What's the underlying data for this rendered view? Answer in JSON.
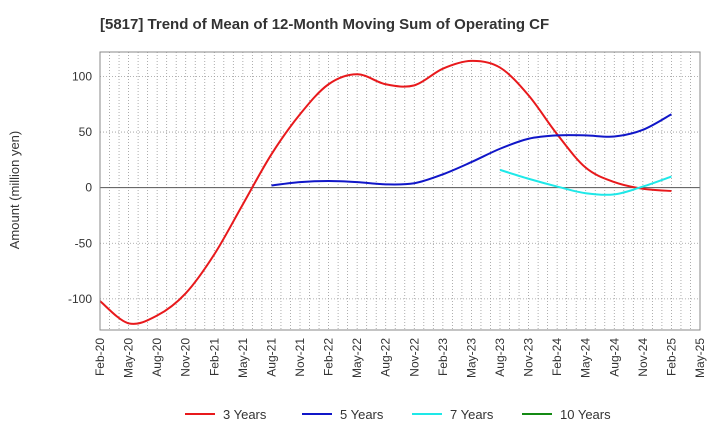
{
  "chart_data": {
    "type": "line",
    "title": "[5817]  Trend of Mean of 12-Month Moving Sum of Operating CF",
    "xlabel": "",
    "ylabel": "Amount (million yen)",
    "ylim": [
      -128,
      122
    ],
    "yticks": [
      100,
      50,
      0,
      -50,
      -100
    ],
    "x_tick_labels": [
      "Feb-20",
      "May-20",
      "Aug-20",
      "Nov-20",
      "Feb-21",
      "May-21",
      "Aug-21",
      "Nov-21",
      "Feb-22",
      "May-22",
      "Aug-22",
      "Nov-22",
      "Feb-23",
      "May-23",
      "Aug-23",
      "Nov-23",
      "Feb-24",
      "May-24",
      "Aug-24",
      "Nov-24",
      "Feb-25",
      "May-25"
    ],
    "grid": true,
    "legend_position": "bottom",
    "series": [
      {
        "name": "3 Years",
        "color": "#e8191c",
        "x": [
          0,
          1,
          2,
          3,
          4,
          5,
          6,
          7,
          8,
          9,
          10,
          11,
          12,
          13,
          14,
          15,
          16,
          17,
          18,
          19,
          20
        ],
        "values": [
          -102,
          -122,
          -115,
          -95,
          -60,
          -15,
          30,
          66,
          93,
          102,
          93,
          92,
          107,
          114,
          108,
          83,
          48,
          18,
          5,
          -1,
          -3
        ]
      },
      {
        "name": "5 Years",
        "color": "#1016c8",
        "x": [
          6,
          7,
          8,
          9,
          10,
          11,
          12,
          13,
          14,
          15,
          16,
          17,
          18,
          19,
          20
        ],
        "values": [
          2,
          5,
          6,
          5,
          3,
          4,
          12,
          23,
          35,
          44,
          47,
          47,
          46,
          52,
          66
        ]
      },
      {
        "name": "7 Years",
        "color": "#1ee8e8",
        "x": [
          14,
          15,
          16,
          17,
          18,
          19,
          20
        ],
        "values": [
          16,
          8,
          1,
          -5,
          -6,
          1,
          10
        ]
      },
      {
        "name": "10 Years",
        "color": "#148a14",
        "x": [],
        "values": []
      }
    ]
  }
}
